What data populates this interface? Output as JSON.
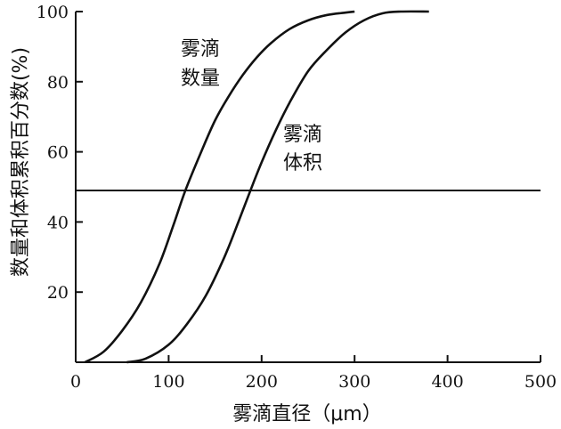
{
  "chart_data": {
    "type": "line",
    "xlabel": "雾滴直径（μm）",
    "ylabel": "数量和体积累积百分数(%)",
    "xlim": [
      0,
      500
    ],
    "ylim": [
      0,
      100
    ],
    "x_ticks": [
      "0",
      "100",
      "200",
      "300",
      "400",
      "500"
    ],
    "y_ticks": [
      "20",
      "40",
      "60",
      "80",
      "100"
    ],
    "grid": false,
    "reference_line_y": 49,
    "series": [
      {
        "name": "雾滴数量",
        "x": [
          10,
          30,
          50,
          70,
          90,
          105,
          118,
          135,
          150,
          165,
          180,
          195,
          210,
          230,
          250,
          270,
          290,
          300
        ],
        "y": [
          0,
          3,
          9,
          17,
          28,
          39,
          49,
          60,
          69,
          76,
          82,
          87,
          91,
          95,
          97.5,
          99,
          99.7,
          100
        ]
      },
      {
        "name": "雾滴体积",
        "x": [
          55,
          75,
          100,
          120,
          140,
          160,
          175,
          188,
          200,
          215,
          230,
          250,
          270,
          290,
          310,
          330,
          350,
          380
        ],
        "y": [
          0,
          1,
          5,
          11,
          19,
          30,
          40,
          49,
          57,
          66,
          74,
          83,
          89,
          94,
          97.5,
          99.5,
          100,
          100
        ]
      }
    ]
  },
  "annotations": {
    "count_label": [
      "雾滴",
      "数量"
    ],
    "volume_label": [
      "雾滴",
      "体积"
    ]
  }
}
